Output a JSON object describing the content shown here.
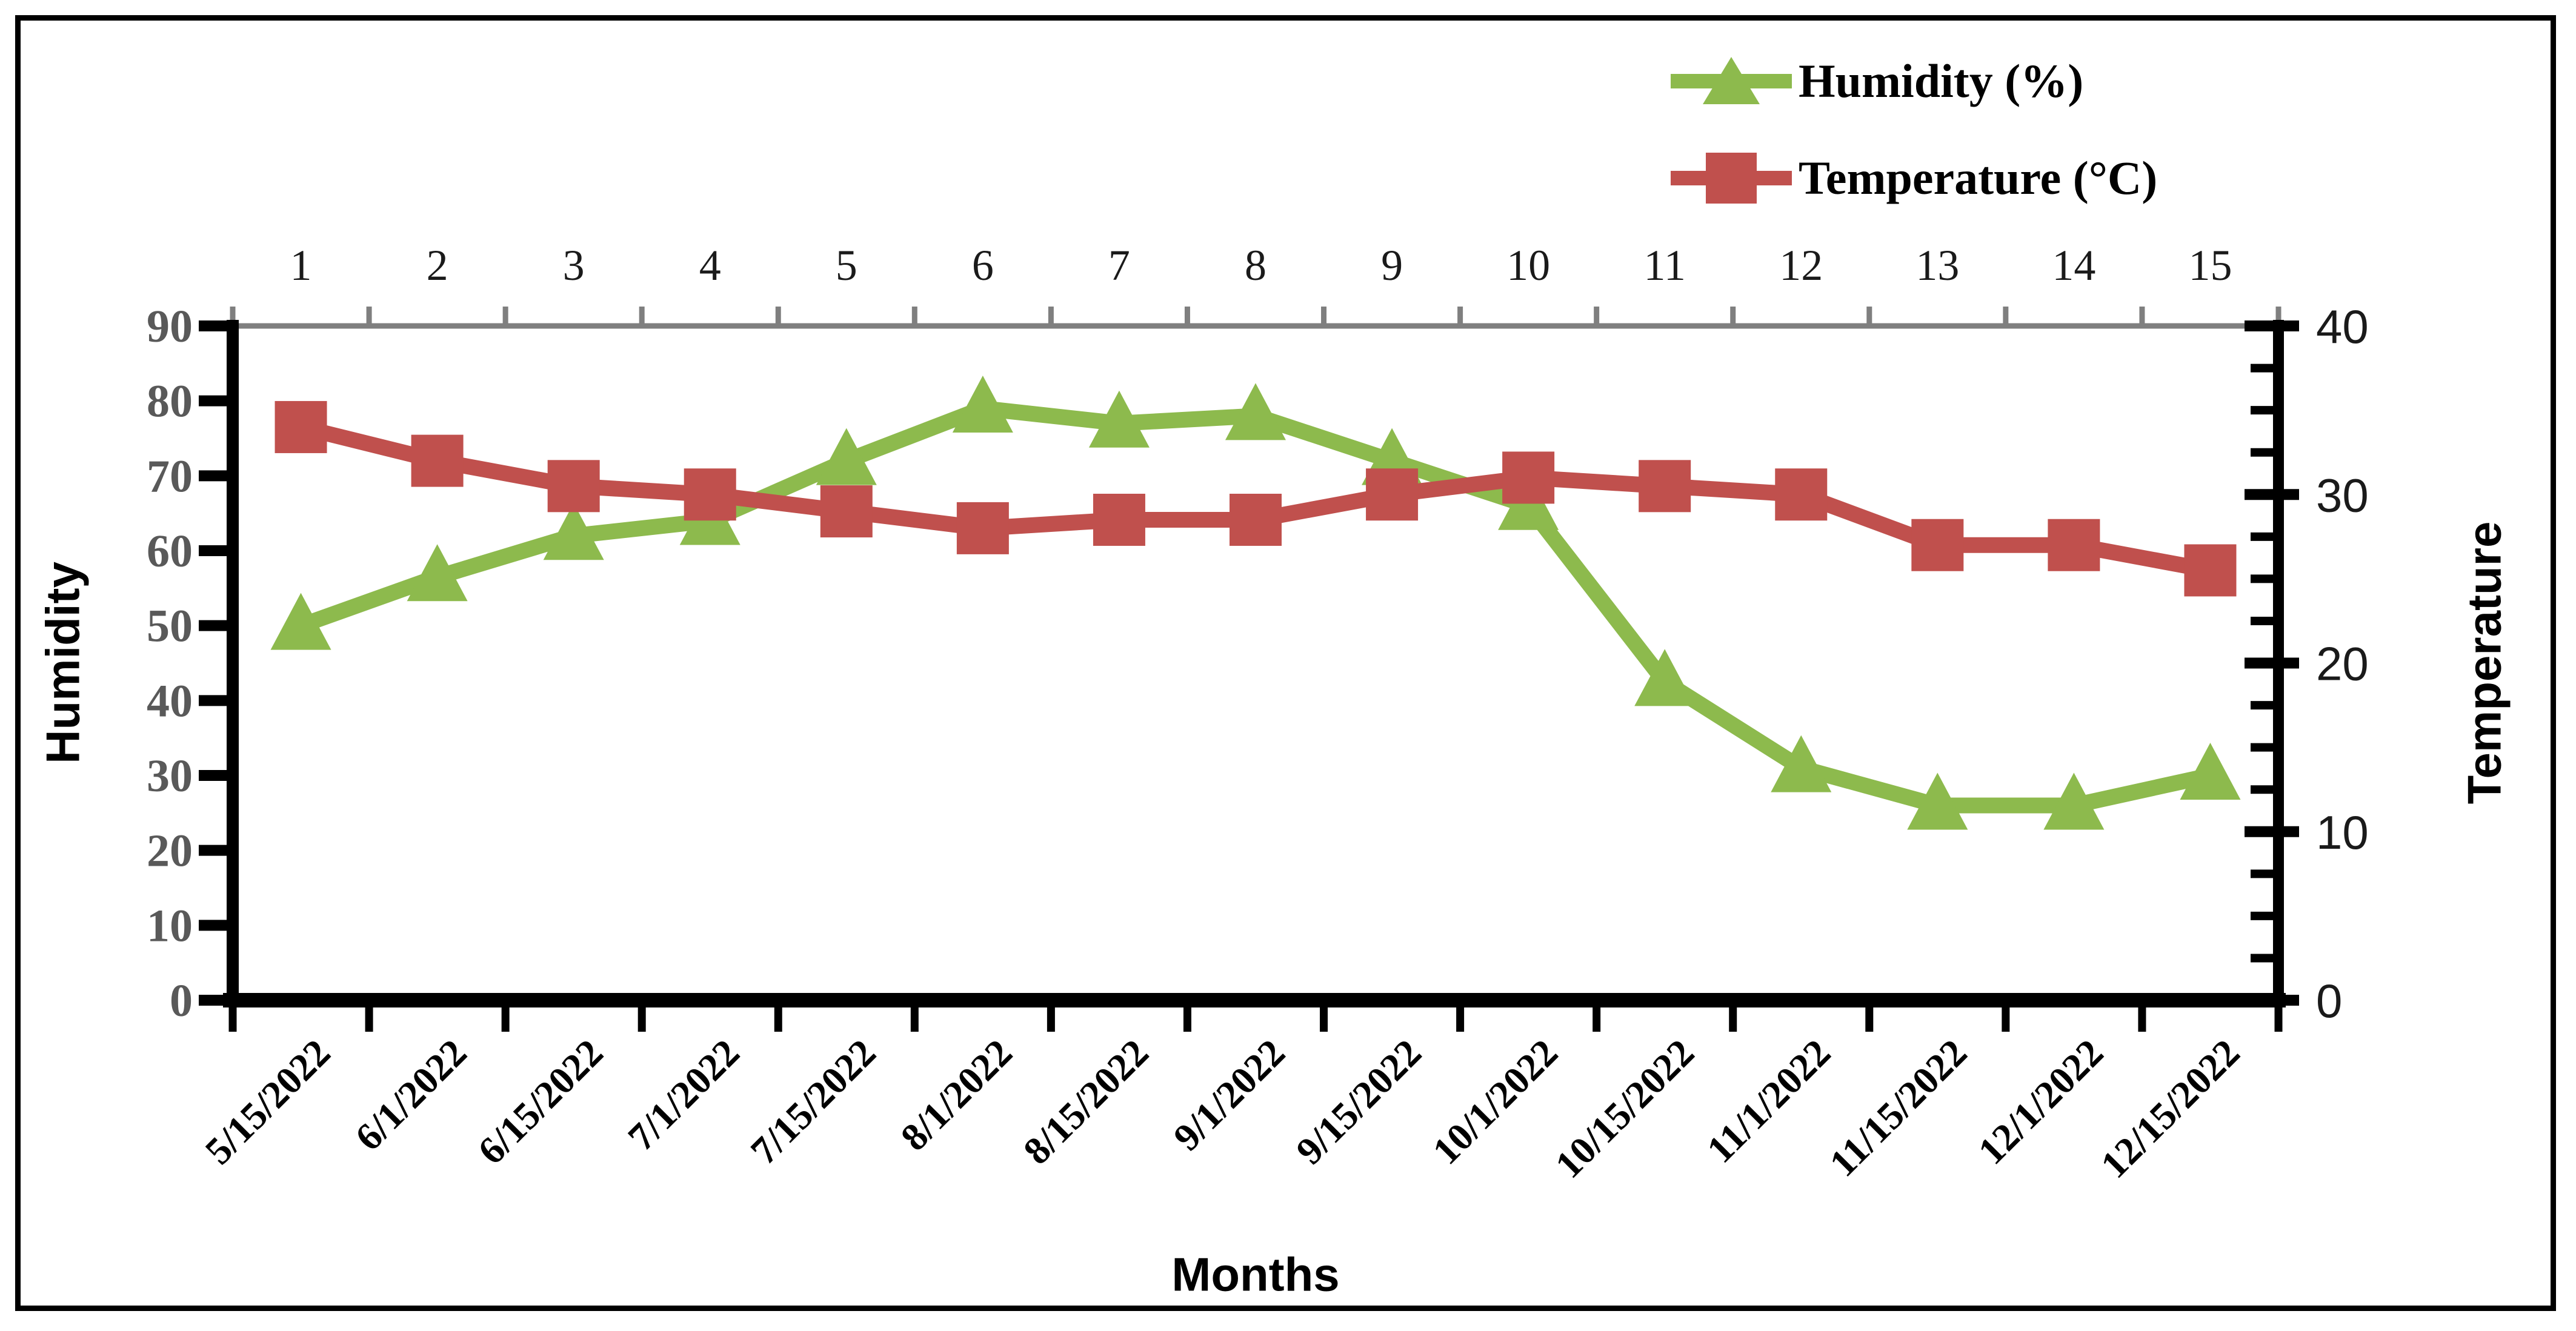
{
  "chart_data": {
    "type": "line",
    "title": "",
    "x_axis": {
      "label": "Months",
      "categories": [
        "5/15/2022",
        "6/1/2022",
        "6/15/2022",
        "7/1/2022",
        "7/15/2022",
        "8/1/2022",
        "8/15/2022",
        "9/1/2022",
        "9/15/2022",
        "10/1/2022",
        "10/15/2022",
        "11/1/2022",
        "11/15/2022",
        "12/1/2022",
        "12/15/2022"
      ],
      "top_labels": [
        "1",
        "2",
        "3",
        "4",
        "5",
        "6",
        "7",
        "8",
        "9",
        "10",
        "11",
        "12",
        "13",
        "14",
        "15"
      ]
    },
    "left_axis": {
      "label": "Humidity",
      "min": 0,
      "max": 90,
      "step": 10,
      "ticks": [
        90,
        80,
        70,
        60,
        50,
        40,
        30,
        20,
        10,
        0
      ]
    },
    "right_axis": {
      "label": "Temperature",
      "min": 0,
      "max": 40,
      "step": 10,
      "minor_step": 2.5,
      "ticks": [
        40,
        30,
        20,
        10,
        0
      ]
    },
    "series": [
      {
        "name": "Humidity (%)",
        "axis": "left",
        "marker": "triangle",
        "color": "#8dba4d",
        "values": [
          50,
          56.5,
          62,
          64,
          72,
          79,
          77,
          78,
          72,
          66,
          42.5,
          31,
          26,
          26,
          30
        ]
      },
      {
        "name": "Temperature (°C)",
        "axis": "right",
        "marker": "square",
        "color": "#c0504d",
        "values": [
          34,
          32,
          30.5,
          30,
          29,
          28,
          28.5,
          28.5,
          30,
          31,
          30.5,
          30,
          27,
          27,
          25.5
        ]
      }
    ],
    "legend_position": "top-right",
    "grid": false
  },
  "colors": {
    "axis_line": "#000000",
    "top_axis_line": "#7f7f7f",
    "left_tick_labels": "#595959",
    "right_tick_labels": "#1a1a1a",
    "top_tick_labels": "#1a1a1a",
    "date_labels": "#000000"
  }
}
